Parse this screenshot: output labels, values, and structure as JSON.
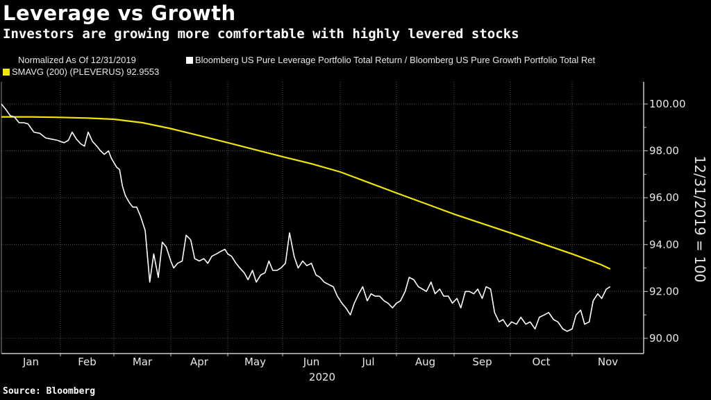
{
  "header": {
    "title": "Leverage vs Growth",
    "subtitle": "Investors are growing more comfortable with highly levered stocks"
  },
  "legend": {
    "normalized_note": "Normalized As Of 12/31/2019",
    "items": [
      {
        "label": "Bloomberg US Pure Leverage Portfolio Total Return / Bloomberg US Pure Growth Portfolio Total Ret",
        "color": "#ffffff"
      },
      {
        "label": "SMAVG (200) (PLEVERUS) 92.9553",
        "color": "#f2e600"
      }
    ]
  },
  "footer": {
    "source": "Source: Bloomberg"
  },
  "chart_data": {
    "type": "line",
    "title": "Leverage vs Growth",
    "subtitle": "Investors are growing more comfortable with highly levered stocks",
    "xlabel": "2020",
    "ylabel": "12/31/2019 = 100",
    "ylim": [
      89.4,
      100.6
    ],
    "yticks": [
      100.0,
      98.0,
      96.0,
      94.0,
      92.0,
      90.0
    ],
    "ytick_labels": [
      "100.00",
      "98.00",
      "96.00",
      "94.00",
      "92.00",
      "90.00"
    ],
    "xticks": [
      "Jan",
      "Feb",
      "Mar",
      "Apr",
      "May",
      "Jun",
      "Jul",
      "Aug",
      "Sep",
      "Oct",
      "Nov"
    ],
    "x_year_label": "2020",
    "x_unit": "months since 2020-01-01 (0 = Jan 1)",
    "xlim": [
      0,
      10.9
    ],
    "grid": true,
    "legend_position": "top-left",
    "y_axis_side": "right",
    "series": [
      {
        "name": "Bloomberg US Pure Leverage Portfolio Total Return / Bloomberg US Pure Growth Portfolio Total Ret",
        "color": "#ffffff",
        "x": [
          0,
          0.08,
          0.15,
          0.22,
          0.3,
          0.38,
          0.45,
          0.55,
          0.65,
          0.75,
          0.85,
          0.95,
          1.0,
          1.07,
          1.15,
          1.22,
          1.3,
          1.38,
          1.45,
          1.52,
          1.6,
          1.68,
          1.75,
          1.82,
          1.9,
          1.95,
          2.0,
          2.05,
          2.1,
          2.15,
          2.2,
          2.27,
          2.33,
          2.4,
          2.47,
          2.55,
          2.63,
          2.7,
          2.78,
          2.85,
          2.92,
          3.0,
          3.05,
          3.12,
          3.2,
          3.27,
          3.35,
          3.42,
          3.5,
          3.58,
          3.65,
          3.72,
          3.8,
          3.87,
          3.95,
          4.0,
          4.07,
          4.15,
          4.22,
          4.3,
          4.37,
          4.45,
          4.52,
          4.6,
          4.68,
          4.75,
          4.82,
          4.9,
          4.97,
          5.05,
          5.12,
          5.2,
          5.27,
          5.35,
          5.42,
          5.5,
          5.58,
          5.65,
          5.72,
          5.8,
          5.88,
          5.95,
          6.03,
          6.1,
          6.18,
          6.25,
          6.33,
          6.4,
          6.48,
          6.55,
          6.62,
          6.7,
          6.78,
          6.85,
          6.93,
          7.0,
          7.07,
          7.15,
          7.22,
          7.3,
          7.38,
          7.45,
          7.52,
          7.6,
          7.67,
          7.75,
          7.82,
          7.9,
          7.97,
          8.05,
          8.12,
          8.2,
          8.27,
          8.35,
          8.42,
          8.5,
          8.57,
          8.65,
          8.72,
          8.8,
          8.87,
          8.95,
          9.02,
          9.1,
          9.17,
          9.25,
          9.32,
          9.4,
          9.47,
          9.55,
          9.62,
          9.7,
          9.77,
          9.85,
          9.92,
          10.0,
          10.07,
          10.15,
          10.22,
          10.3,
          10.37,
          10.45,
          10.52,
          10.6,
          10.67
        ],
        "values": [
          100.0,
          99.75,
          99.5,
          99.45,
          99.2,
          99.2,
          99.15,
          98.8,
          98.75,
          98.55,
          98.5,
          98.45,
          98.4,
          98.35,
          98.45,
          98.8,
          98.5,
          98.3,
          98.2,
          98.8,
          98.4,
          98.2,
          98.0,
          97.85,
          98.0,
          97.7,
          97.5,
          97.3,
          97.2,
          96.5,
          96.1,
          95.8,
          95.6,
          95.6,
          95.2,
          94.6,
          92.4,
          93.6,
          92.6,
          94.1,
          93.9,
          93.3,
          93.0,
          93.2,
          93.3,
          94.4,
          94.2,
          93.4,
          93.3,
          93.4,
          93.2,
          93.5,
          93.6,
          93.7,
          93.8,
          93.6,
          93.5,
          93.2,
          93.0,
          92.8,
          92.5,
          92.9,
          92.4,
          92.7,
          92.8,
          93.3,
          92.9,
          92.9,
          93.0,
          93.2,
          94.5,
          93.5,
          93.0,
          93.3,
          93.1,
          93.2,
          92.7,
          92.6,
          92.4,
          92.3,
          92.2,
          91.8,
          91.5,
          91.3,
          91.0,
          91.5,
          91.9,
          92.2,
          91.6,
          91.9,
          91.8,
          91.8,
          91.6,
          91.5,
          91.3,
          91.5,
          91.6,
          92.0,
          92.6,
          92.5,
          92.2,
          92.1,
          92.0,
          92.4,
          91.9,
          92.1,
          91.8,
          91.8,
          91.5,
          91.7,
          91.3,
          92.0,
          92.0,
          91.9,
          92.1,
          91.7,
          92.2,
          92.1,
          91.1,
          90.7,
          90.8,
          90.5,
          90.7,
          90.6,
          90.9,
          90.6,
          90.7,
          90.4,
          90.9,
          91.0,
          91.1,
          90.8,
          90.7,
          90.4,
          90.3,
          90.4,
          91.0,
          91.2,
          90.6,
          90.7,
          91.6,
          91.9,
          91.7,
          92.1,
          92.2
        ]
      },
      {
        "name": "SMAVG (200) (PLEVERUS)",
        "color": "#f2e600",
        "last_value": 92.9553,
        "x": [
          0,
          0.5,
          1.0,
          1.5,
          2.0,
          2.5,
          3.0,
          3.5,
          4.0,
          4.5,
          5.0,
          5.5,
          6.0,
          6.5,
          7.0,
          7.5,
          8.0,
          8.5,
          9.0,
          9.5,
          10.0,
          10.5,
          10.67
        ],
        "values": [
          99.45,
          99.45,
          99.43,
          99.4,
          99.35,
          99.2,
          98.95,
          98.65,
          98.35,
          98.05,
          97.75,
          97.45,
          97.1,
          96.65,
          96.2,
          95.75,
          95.3,
          94.9,
          94.5,
          94.05,
          93.6,
          93.15,
          92.96
        ]
      }
    ]
  }
}
